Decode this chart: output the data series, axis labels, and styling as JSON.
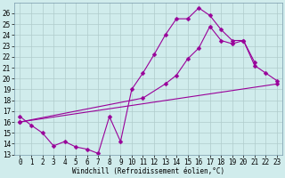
{
  "xlabel": "Windchill (Refroidissement éolien,°C)",
  "xlim": [
    -0.5,
    23.5
  ],
  "ylim": [
    13,
    27
  ],
  "xticks": [
    0,
    1,
    2,
    3,
    4,
    5,
    6,
    7,
    8,
    9,
    10,
    11,
    12,
    13,
    14,
    15,
    16,
    17,
    18,
    19,
    20,
    21,
    22,
    23
  ],
  "yticks": [
    13,
    14,
    15,
    16,
    17,
    18,
    19,
    20,
    21,
    22,
    23,
    24,
    25,
    26
  ],
  "background_color": "#d0ecec",
  "grid_color": "#b0cccc",
  "line_color": "#990099",
  "line1_x": [
    0,
    1,
    2,
    3,
    4,
    5,
    6,
    7,
    8,
    9,
    10,
    11,
    12,
    13,
    14,
    15,
    16,
    17,
    18,
    19,
    20,
    21
  ],
  "line1_y": [
    16.5,
    15.7,
    15.0,
    13.8,
    14.2,
    13.7,
    13.5,
    13.1,
    16.5,
    14.2,
    19.0,
    20.5,
    22.2,
    24.0,
    25.5,
    25.5,
    26.5,
    25.8,
    24.5,
    23.5,
    23.5,
    21.5
  ],
  "line2_x": [
    0,
    23
  ],
  "line2_y": [
    16.0,
    19.5
  ],
  "line3_x": [
    0,
    11,
    13,
    14,
    15,
    16,
    17,
    18,
    19,
    20,
    21,
    22,
    23
  ],
  "line3_y": [
    16.0,
    18.2,
    19.5,
    20.3,
    21.8,
    22.8,
    24.8,
    23.5,
    23.2,
    23.5,
    21.2,
    20.5,
    19.8
  ],
  "markersize": 2.5,
  "linewidth": 0.8,
  "font_family": "monospace",
  "tick_fontsize": 5.5
}
